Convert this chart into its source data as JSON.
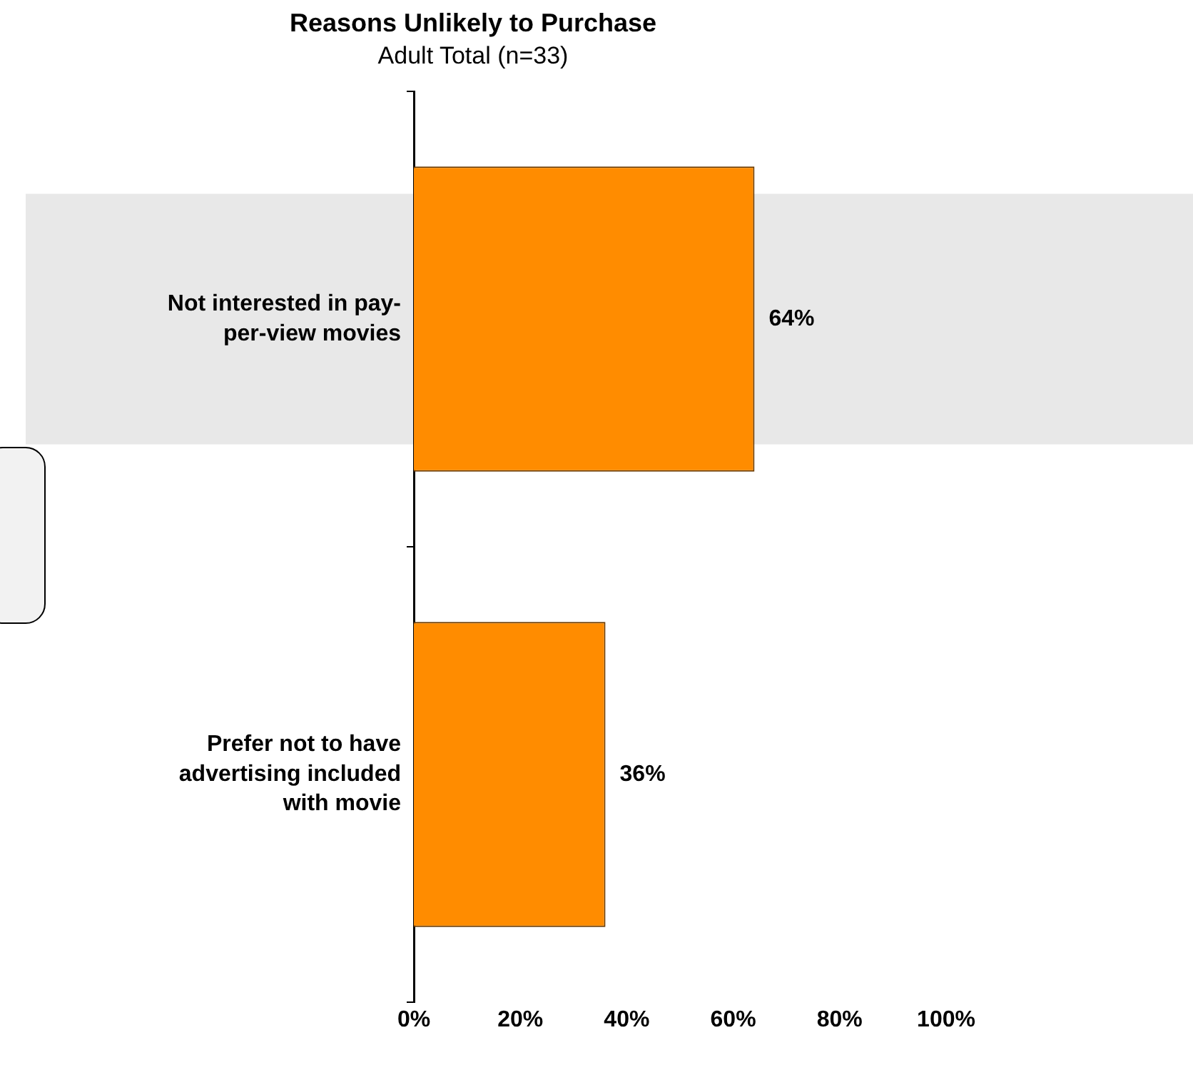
{
  "chart_data": {
    "type": "bar",
    "orientation": "horizontal",
    "title": "Reasons Unlikely to Purchase",
    "subtitle": "Adult Total (n=33)",
    "categories": [
      "Not interested in pay-\nper-view movies",
      "Prefer not to have\nadvertising included\nwith movie"
    ],
    "values": [
      64,
      36
    ],
    "color": "#ff8c00",
    "value_labels": [
      "64%",
      "36%"
    ],
    "xlim": [
      0,
      100
    ],
    "xticks": [
      {
        "value": 0,
        "label": "0%"
      },
      {
        "value": 20,
        "label": "20%"
      },
      {
        "value": 40,
        "label": "40%"
      },
      {
        "value": 60,
        "label": "60%"
      },
      {
        "value": 80,
        "label": "80%"
      },
      {
        "value": 100,
        "label": "100%"
      }
    ],
    "bands": [
      {
        "axis": "y",
        "from": "Not interested in pay-\nper-view movies",
        "to": "Not interested in pay-\nper-view movies",
        "color": "#e8e8e8"
      }
    ],
    "grid": false,
    "legend": false
  }
}
